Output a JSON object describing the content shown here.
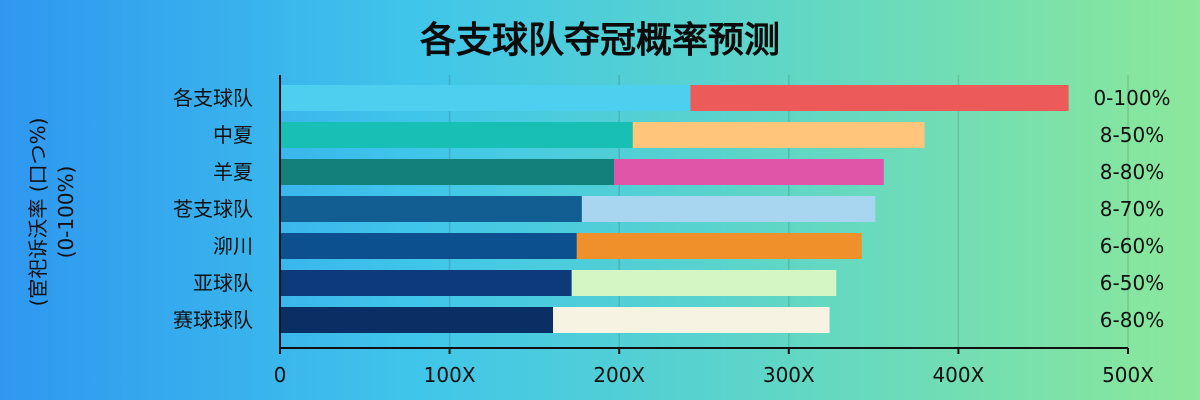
{
  "chart_data": {
    "type": "bar",
    "orientation": "horizontal",
    "stacked": true,
    "title": "各支球队夺冠概率预测",
    "ylabel": "(宦祀诉沃率 (口つ%)",
    "ylabel_sub": "(0-100%)",
    "xlabel": "",
    "xlim": [
      0,
      500
    ],
    "x_ticks": [
      "0",
      "100X",
      "200X",
      "300X",
      "400X",
      "500X"
    ],
    "x_tick_values": [
      0,
      100,
      200,
      300,
      400,
      500
    ],
    "grid": true,
    "categories": [
      "各支球队",
      "中夏",
      "羊夏",
      "苍支球队",
      "泖川",
      "亚球队",
      "赛球球队"
    ],
    "range_labels": [
      "0-100%",
      "8-50%",
      "8-80%",
      "8-70%",
      "6-60%",
      "6-50%",
      "6-80%"
    ],
    "segment1": [
      242,
      208,
      197,
      178,
      175,
      172,
      161
    ],
    "total": [
      465,
      380,
      356,
      351,
      343,
      328,
      324
    ],
    "segment1_colors": [
      "#4dd0f0",
      "#17bfb4",
      "#13807c",
      "#125e92",
      "#0c5090",
      "#0d3a7a",
      "#0a2f65"
    ],
    "segment2_colors": [
      "#ec5a5a",
      "#ffc57a",
      "#e055a8",
      "#a8d6f0",
      "#f0902a",
      "#d4f5c4",
      "#f7f3e2"
    ]
  }
}
